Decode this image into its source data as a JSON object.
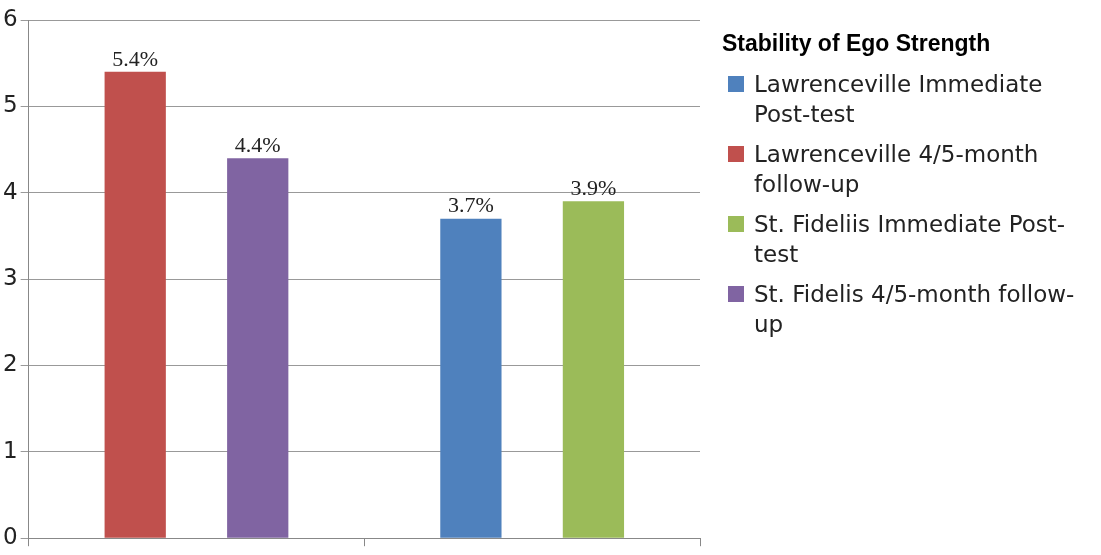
{
  "chart_data": {
    "type": "bar",
    "legend_title": "Stability of Ego Strength",
    "legend": "right",
    "grid": "y",
    "categories": [
      null,
      null
    ],
    "ylim": [
      0,
      6
    ],
    "yticks": [
      0,
      1,
      2,
      3,
      4,
      5,
      6
    ],
    "series": [
      {
        "name": "Lawrenceville Immediate Post-test",
        "color": "#4f81bd",
        "values": [
          null,
          3.7
        ],
        "value_labels": [
          null,
          "3.7%"
        ]
      },
      {
        "name": "Lawrenceville 4/5-month follow-up",
        "color": "#c0504d",
        "values": [
          5.4,
          null
        ],
        "value_labels": [
          "5.4%",
          null
        ]
      },
      {
        "name": "St. Fideliis Immediate Post-test",
        "color": "#9bbb59",
        "values": [
          null,
          3.9
        ],
        "value_labels": [
          null,
          "3.9%"
        ]
      },
      {
        "name": "St. Fidelis 4/5-month follow-up",
        "color": "#8064a2",
        "values": [
          4.4,
          null
        ],
        "value_labels": [
          "4.4%",
          null
        ]
      }
    ]
  }
}
